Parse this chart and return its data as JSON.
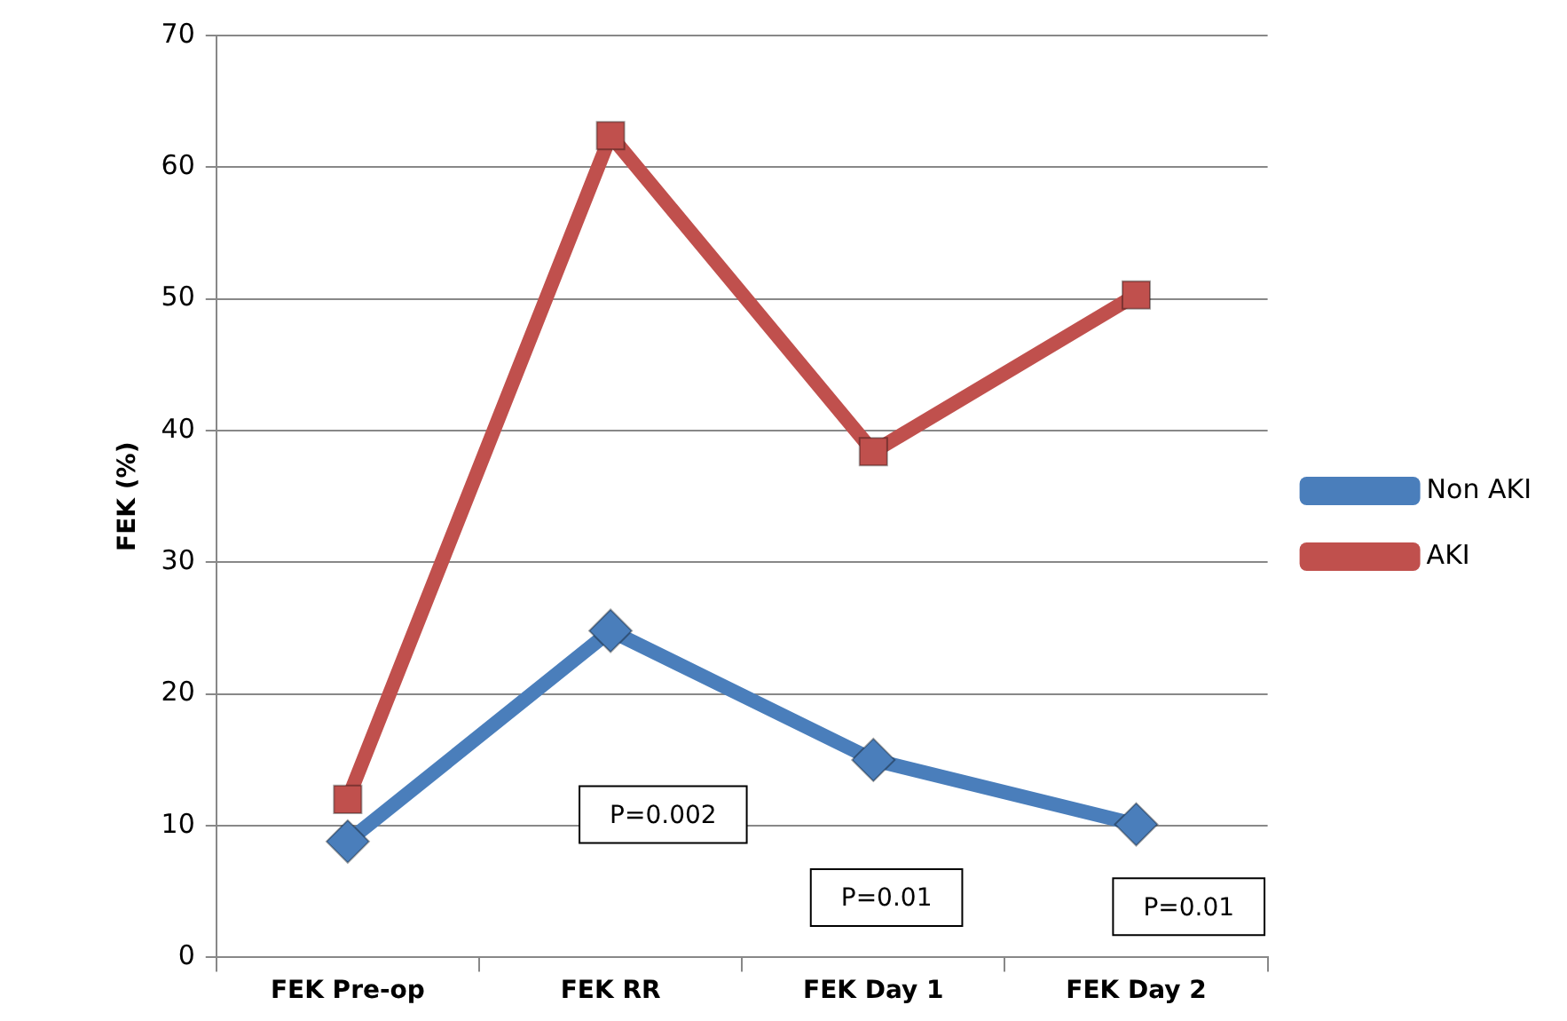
{
  "chart_data": {
    "type": "line",
    "ylabel": "FEK (%)",
    "categories": [
      "FEK Pre-op",
      "FEK RR",
      "FEK Day 1",
      "FEK Day 2"
    ],
    "series": [
      {
        "name": "Non AKI",
        "color": "#4a7ebb",
        "marker": "diamond",
        "values": [
          8.8,
          24.8,
          15.0,
          10.1
        ]
      },
      {
        "name": "AKI",
        "color": "#c0504d",
        "marker": "square",
        "values": [
          12.0,
          62.4,
          38.4,
          50.3
        ]
      }
    ],
    "ylim": [
      0,
      70
    ],
    "yticks": [
      0,
      10,
      20,
      30,
      40,
      50,
      60,
      70
    ],
    "grid": "y",
    "legend": "right",
    "line_style": "solid",
    "annotations": [
      "P=0.002",
      "P=0.01",
      "P=0.01"
    ]
  }
}
